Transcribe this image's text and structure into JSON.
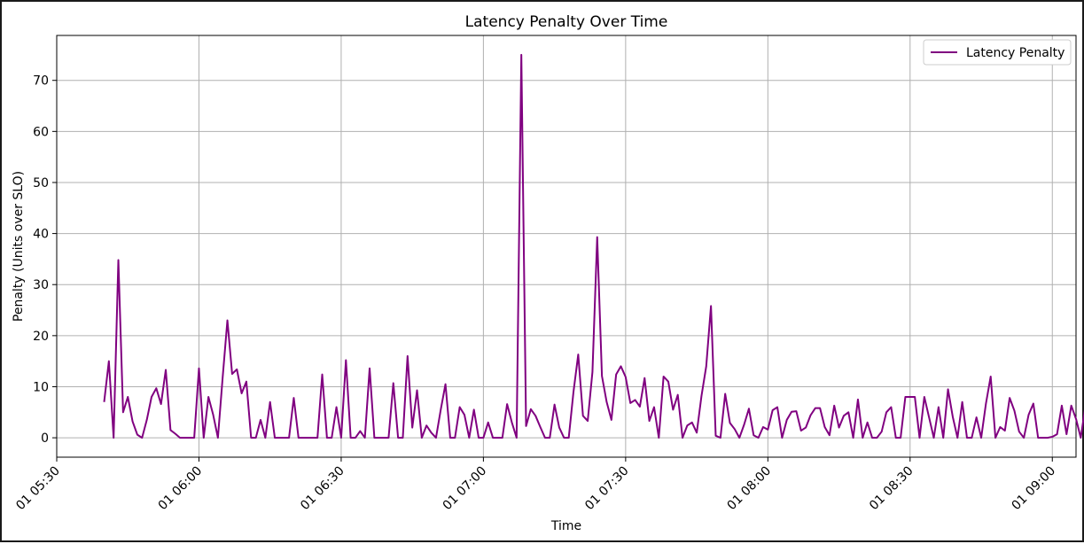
{
  "chart_data": {
    "type": "line",
    "title": "Latency Penalty Over Time",
    "xlabel": "Time",
    "ylabel": "Penalty (Units over SLO)",
    "x_start": "05:40",
    "x_step_minutes": 1,
    "xlim": [
      "05:30",
      "09:05"
    ],
    "ylim": [
      -3.8,
      78.8
    ],
    "x_ticks": [
      "01 05:30",
      "01 06:00",
      "01 06:30",
      "01 07:00",
      "01 07:30",
      "01 08:00",
      "01 08:30",
      "01 09:00"
    ],
    "y_ticks": [
      0,
      10,
      20,
      30,
      40,
      50,
      60,
      70
    ],
    "grid": true,
    "legend_position": "upper right",
    "series": [
      {
        "name": "Latency Penalty",
        "color": "#800080",
        "values": [
          7,
          15,
          0,
          34.8,
          5,
          8,
          3.2,
          0.6,
          0,
          3.5,
          8,
          9.7,
          6.6,
          13.3,
          1.5,
          0.8,
          0,
          0,
          0,
          0,
          13.6,
          0,
          8,
          4.5,
          0,
          11.8,
          23,
          12.5,
          13.4,
          8.7,
          11,
          0,
          0,
          3.5,
          0,
          7,
          0,
          0,
          0,
          0,
          7.8,
          0,
          0,
          0,
          0,
          0,
          12.4,
          0,
          0,
          6,
          0,
          15.2,
          0,
          0,
          1.3,
          0,
          13.6,
          0,
          0,
          0,
          0,
          10.7,
          0,
          0,
          16,
          2,
          9.3,
          0,
          2.4,
          1,
          0,
          5.5,
          10.5,
          0,
          0,
          6,
          4.5,
          0,
          5.5,
          0,
          0,
          3,
          0,
          0,
          0,
          6.6,
          3,
          0,
          75,
          2.3,
          5.6,
          4.3,
          2.1,
          0,
          0,
          6.5,
          2,
          0,
          0,
          9,
          16.3,
          4.3,
          3.3,
          12.9,
          39.3,
          12.1,
          7,
          3.5,
          12.4,
          14,
          11.9,
          6.8,
          7.4,
          6.1,
          11.7,
          3.3,
          6,
          0,
          12,
          11,
          5.5,
          8.4,
          0,
          2.4,
          3,
          1,
          8.2,
          14,
          25.8,
          0.4,
          0,
          8.6,
          2.9,
          1.7,
          0,
          2.6,
          5.7,
          0.5,
          0,
          2.1,
          1.6,
          5.4,
          6,
          0,
          3.5,
          5.1,
          5.2,
          1.4,
          2,
          4.4,
          5.8,
          5.8,
          2.1,
          0.5,
          6.3,
          2,
          4.3,
          5,
          0,
          7.5,
          0,
          3,
          0,
          0,
          1.2,
          5,
          6,
          0,
          0,
          8,
          8,
          8,
          0,
          8,
          4,
          0,
          6,
          0,
          9.5,
          4.1,
          0,
          7,
          0,
          0,
          4,
          0,
          6.7,
          12,
          0,
          2.1,
          1.4,
          7.8,
          5.3,
          1.2,
          0,
          4.5,
          6.7,
          0,
          0,
          0,
          0.2,
          0.7,
          6.3,
          0.7,
          6.3,
          3.7,
          0,
          6.4
        ]
      }
    ]
  }
}
